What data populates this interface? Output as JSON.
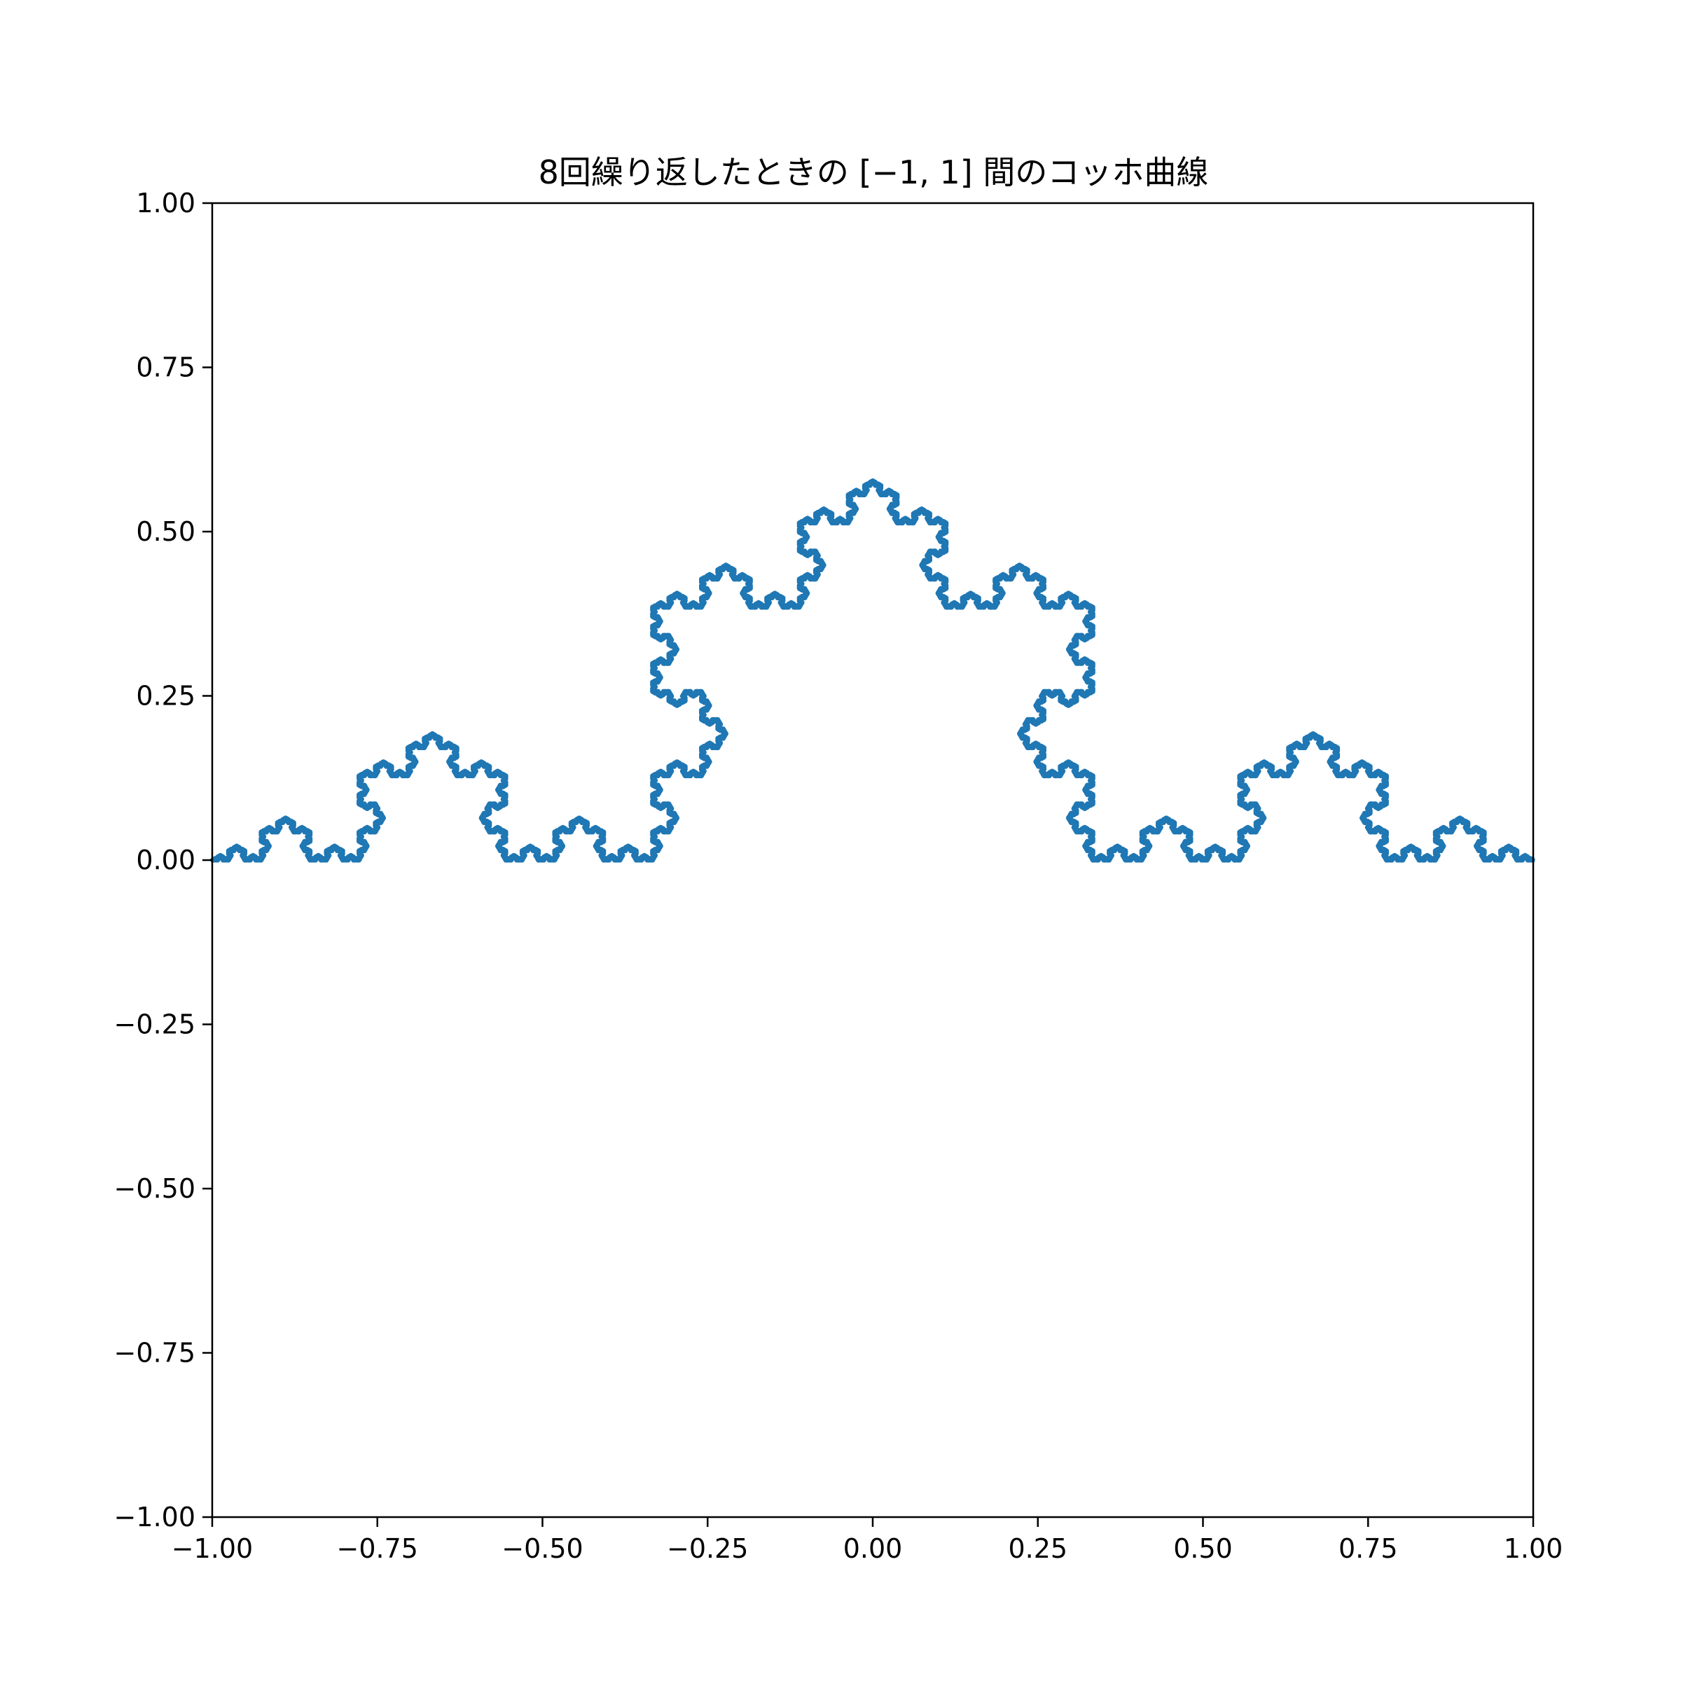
{
  "chart_data": {
    "type": "line",
    "title": "8回繰り返したときの [−1, 1] 間のコッホ曲線",
    "xlabel": "",
    "ylabel": "",
    "xlim": [
      -1.0,
      1.0
    ],
    "ylim": [
      -1.0,
      1.0
    ],
    "grid": false,
    "legend": "none",
    "aspect": "equal",
    "xticks": [
      "−1.00",
      "−0.75",
      "−0.50",
      "−0.25",
      "0.00",
      "0.25",
      "0.50",
      "0.75",
      "1.00"
    ],
    "yticks": [
      "−1.00",
      "−0.75",
      "−0.50",
      "−0.25",
      "0.00",
      "0.25",
      "0.50",
      "0.75",
      "1.00"
    ],
    "xtick_values": [
      -1.0,
      -0.75,
      -0.5,
      -0.25,
      0.0,
      0.25,
      0.5,
      0.75,
      1.0
    ],
    "ytick_values": [
      -1.0,
      -0.75,
      -0.5,
      -0.25,
      0.0,
      0.25,
      0.5,
      0.75,
      1.0
    ],
    "series": [
      {
        "curve": "koch",
        "iterations": 8,
        "start": [
          -1.0,
          0.0
        ],
        "end": [
          1.0,
          0.0
        ],
        "color": "#1f77b4"
      }
    ]
  }
}
